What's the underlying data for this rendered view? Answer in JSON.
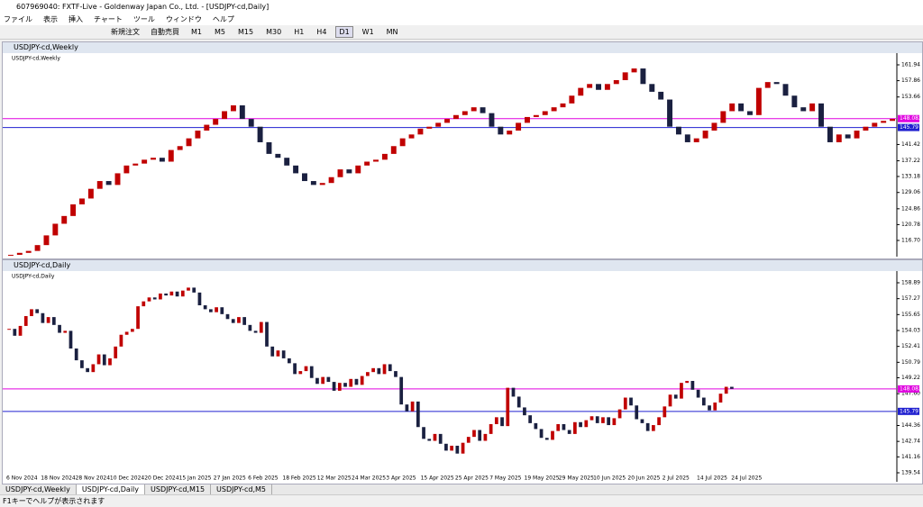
{
  "title_bar": "607969040: FXTF-Live - Goldenway Japan Co., Ltd. - [USDJPY-cd,Daily]",
  "menu": [
    "ファイル",
    "表示",
    "挿入",
    "チャート",
    "ツール",
    "ウィンドウ",
    "ヘルプ"
  ],
  "toolbar": {
    "buttons": [
      "新規注文",
      "自動売買"
    ],
    "timeframes": [
      "M1",
      "M5",
      "M15",
      "M30",
      "H1",
      "H4",
      "D1",
      "W1",
      "MN"
    ],
    "active_timeframe": "D1"
  },
  "windows": [
    {
      "title": "USDJPY-cd,Weekly",
      "label": "USDJPY-cd,Weekly",
      "ticks": [
        {
          "value": 161.94,
          "label": "161.940"
        },
        {
          "value": 157.86,
          "label": "157.860"
        },
        {
          "value": 153.66,
          "label": "153.660"
        },
        {
          "value": 141.42,
          "label": "141.420"
        },
        {
          "value": 137.22,
          "label": "137.220"
        },
        {
          "value": 133.18,
          "label": "133.180"
        },
        {
          "value": 129.06,
          "label": "129.060"
        },
        {
          "value": 124.86,
          "label": "124.860"
        },
        {
          "value": 120.78,
          "label": "120.780"
        },
        {
          "value": 116.7,
          "label": "116.700"
        }
      ],
      "levels": [
        {
          "value": 148.082,
          "label": "148.082",
          "color": "#e000e0"
        },
        {
          "value": 145.797,
          "label": "145.797",
          "color": "#2020d0"
        }
      ],
      "closes": [
        113,
        113.5,
        114,
        115.5,
        118,
        121,
        123,
        126,
        127.5,
        130,
        132,
        131,
        134,
        136,
        136.5,
        137.5,
        138,
        137,
        140,
        141,
        143,
        145,
        146.5,
        148,
        150,
        151.5,
        148,
        146,
        142,
        139,
        138,
        136,
        134,
        132,
        131,
        131.5,
        133,
        135,
        134,
        136,
        137,
        137.5,
        139,
        141,
        143,
        144,
        145.5,
        146,
        147,
        148,
        149,
        150,
        151,
        149.5,
        146,
        144,
        145,
        147,
        148.5,
        149,
        150,
        151,
        152,
        154,
        156,
        157,
        155.5,
        157,
        158,
        160,
        161,
        157,
        155,
        153,
        146,
        144,
        142,
        143,
        145,
        147,
        150,
        152,
        150,
        149,
        156,
        157.5,
        157,
        154,
        151,
        150,
        152,
        146,
        142,
        144,
        143,
        145,
        146,
        147,
        147.5,
        148
      ]
    },
    {
      "title": "USDJPY-cd,Daily",
      "label": "USDJPY-cd,Daily",
      "ticks": [
        {
          "value": 158.895,
          "label": "158.895"
        },
        {
          "value": 157.275,
          "label": "157.275"
        },
        {
          "value": 155.655,
          "label": "155.655"
        },
        {
          "value": 154.035,
          "label": "154.035"
        },
        {
          "value": 152.415,
          "label": "152.415"
        },
        {
          "value": 150.795,
          "label": "150.795"
        },
        {
          "value": 149.22,
          "label": "149.220"
        },
        {
          "value": 147.6,
          "label": "147.600"
        },
        {
          "value": 144.36,
          "label": "144.360"
        },
        {
          "value": 142.74,
          "label": "142.740"
        },
        {
          "value": 141.165,
          "label": "141.165"
        },
        {
          "value": 139.545,
          "label": "139.545"
        }
      ],
      "levels": [
        {
          "value": 148.082,
          "label": "148.082",
          "color": "#e000e0"
        },
        {
          "value": 145.797,
          "label": "145.797",
          "color": "#2020d0"
        }
      ],
      "closes": [
        154.2,
        153.5,
        154.5,
        155.5,
        156.2,
        155.8,
        154.8,
        155.4,
        154.6,
        153.8,
        154.0,
        152.2,
        151.0,
        150.2,
        149.8,
        150.6,
        151.6,
        150.5,
        151.2,
        152.4,
        153.6,
        153.9,
        154.2,
        156.5,
        157.0,
        157.4,
        157.2,
        157.8,
        157.6,
        158.0,
        157.5,
        158.1,
        158.4,
        157.9,
        156.6,
        156.2,
        155.9,
        156.4,
        155.7,
        155.2,
        154.8,
        155.4,
        154.6,
        154.0,
        153.8,
        154.9,
        152.4,
        151.4,
        152.0,
        151.2,
        150.7,
        149.6,
        149.9,
        150.4,
        149.2,
        148.6,
        149.3,
        148.8,
        147.9,
        148.7,
        148.3,
        149.1,
        148.5,
        149.4,
        149.8,
        150.2,
        149.6,
        150.6,
        149.9,
        149.3,
        146.5,
        145.8,
        146.8,
        144.2,
        143.0,
        142.8,
        143.5,
        142.5,
        141.8,
        142.3,
        141.5,
        142.6,
        143.2,
        143.9,
        142.8,
        143.5,
        144.5,
        145.2,
        144.3,
        148.2,
        147.3,
        146.2,
        145.4,
        144.6,
        144.0,
        143.1,
        142.9,
        143.8,
        144.5,
        143.9,
        143.5,
        144.7,
        144.2,
        144.9,
        145.3,
        144.6,
        145.2,
        144.4,
        145.1,
        146.0,
        147.2,
        146.4,
        145.0,
        144.6,
        143.8,
        144.4,
        145.2,
        146.3,
        147.5,
        147.1,
        148.7,
        148.9,
        148.0,
        147.2,
        146.4,
        145.9,
        146.7,
        147.6,
        148.3,
        148.1
      ],
      "dates": [
        "6 Nov 2024",
        "18 Nov 2024",
        "28 Nov 2024",
        "10 Dec 2024",
        "20 Dec 2024",
        "15 Jan 2025",
        "27 Jan 2025",
        "6 Feb 2025",
        "18 Feb 2025",
        "12 Mar 2025",
        "24 Mar 2025",
        "3 Apr 2025",
        "15 Apr 2025",
        "25 Apr 2025",
        "7 May 2025",
        "19 May 2025",
        "29 May 2025",
        "10 Jun 2025",
        "20 Jun 2025",
        "2 Jul 2025",
        "14 Jul 2025",
        "24 Jul 2025"
      ]
    }
  ],
  "tabs": [
    "USDJPY-cd,Weekly",
    "USDJPY-cd,Daily",
    "USDJPY-cd,M15",
    "USDJPY-cd,M5"
  ],
  "active_tab": 1,
  "status": "F1キーでヘルプが表示されます"
}
